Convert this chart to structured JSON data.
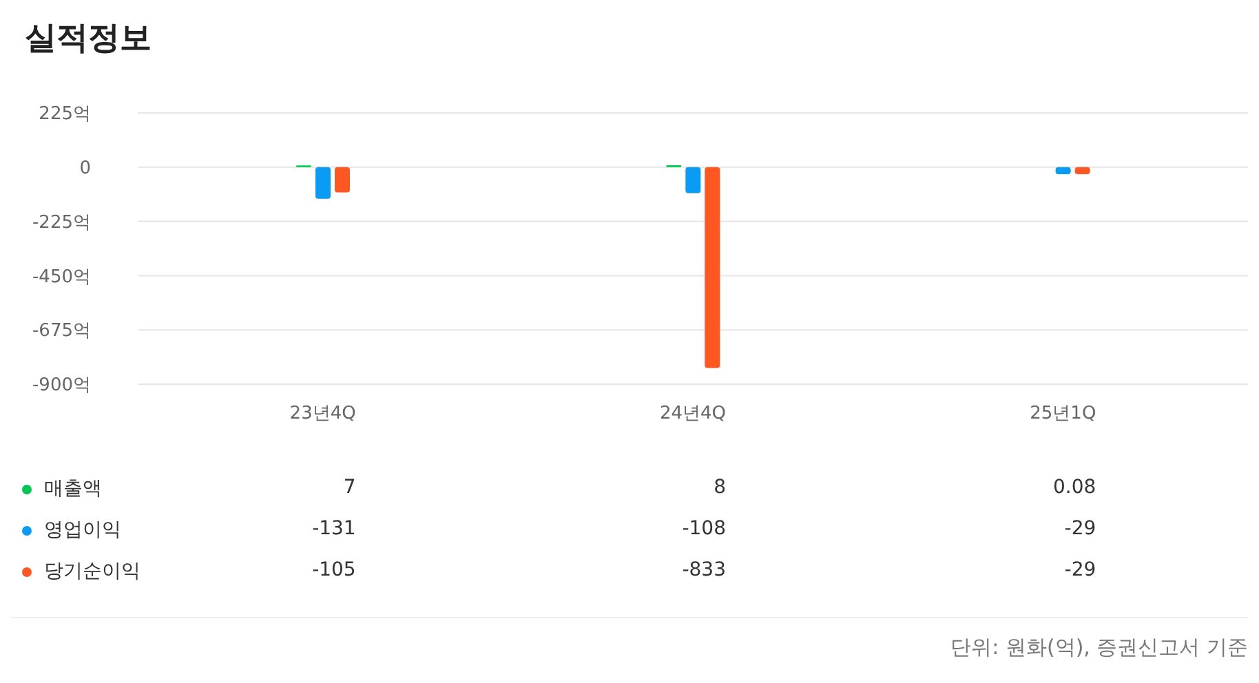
{
  "chart_data": {
    "type": "bar",
    "title": "실적정보",
    "categories": [
      "23년4Q",
      "24년4Q",
      "25년1Q"
    ],
    "series": [
      {
        "name": "매출액",
        "color": "#00c853",
        "values": [
          7,
          8,
          0.08
        ]
      },
      {
        "name": "영업이익",
        "color": "#0a9cf5",
        "values": [
          -131,
          -108,
          -29
        ]
      },
      {
        "name": "당기순이익",
        "color": "#ff5722",
        "values": [
          -105,
          -833,
          -29
        ]
      }
    ],
    "ylim": [
      -900,
      225
    ],
    "yticks": [
      {
        "value": 225,
        "label": "225억"
      },
      {
        "value": 0,
        "label": "0"
      },
      {
        "value": -225,
        "label": "-225억"
      },
      {
        "value": -450,
        "label": "-450억"
      },
      {
        "value": -675,
        "label": "-675억"
      },
      {
        "value": -900,
        "label": "-900억"
      }
    ],
    "grid": "y",
    "legend": "bottom",
    "data_labels": true,
    "annotations": [
      "단위: 원화(억), 증권신고서 기준"
    ]
  }
}
